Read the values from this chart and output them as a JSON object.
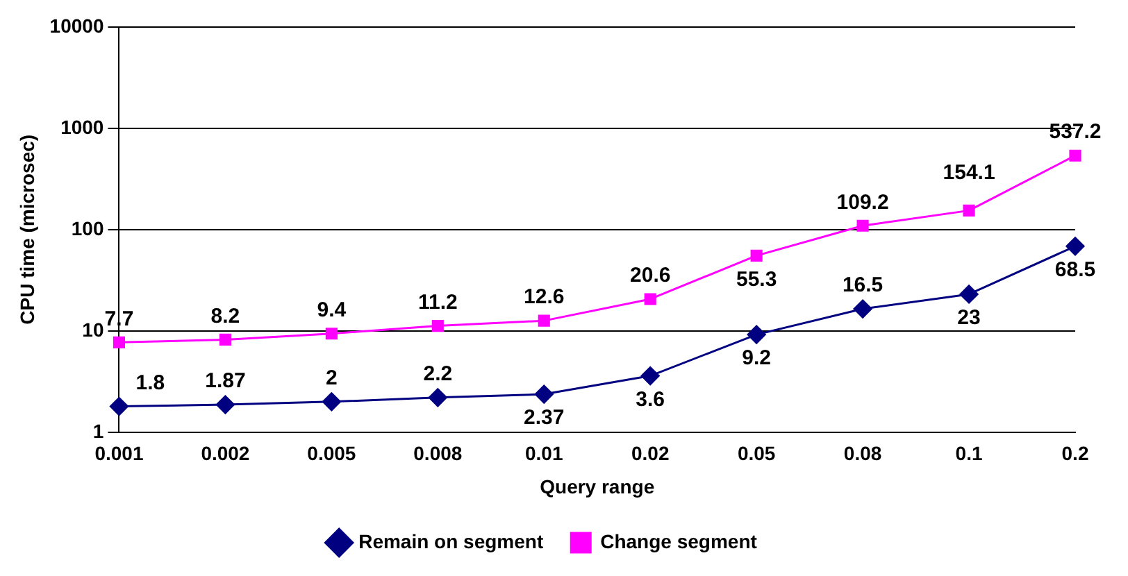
{
  "chart_data": {
    "type": "line",
    "xlabel": "Query range",
    "ylabel": "CPU time (microsec)",
    "categories": [
      "0.001",
      "0.002",
      "0.005",
      "0.008",
      "0.01",
      "0.02",
      "0.05",
      "0.08",
      "0.1",
      "0.2"
    ],
    "series": [
      {
        "name": "Remain on segment",
        "color": "#000080",
        "marker": "diamond",
        "values": [
          1.8,
          1.87,
          2,
          2.2,
          2.37,
          3.6,
          9.2,
          16.5,
          23,
          68.5
        ]
      },
      {
        "name": "Change segment",
        "color": "#ff00ff",
        "marker": "square",
        "values": [
          7.7,
          8.2,
          9.4,
          11.2,
          12.6,
          20.6,
          55.3,
          109.2,
          154.1,
          537.2
        ]
      }
    ],
    "log": "y",
    "ylim": [
      1,
      10000
    ],
    "yticks": [
      1,
      10,
      100,
      1000,
      10000
    ],
    "grid": "y",
    "legend": "bottom",
    "data_labels": true,
    "line_style": "solid"
  }
}
